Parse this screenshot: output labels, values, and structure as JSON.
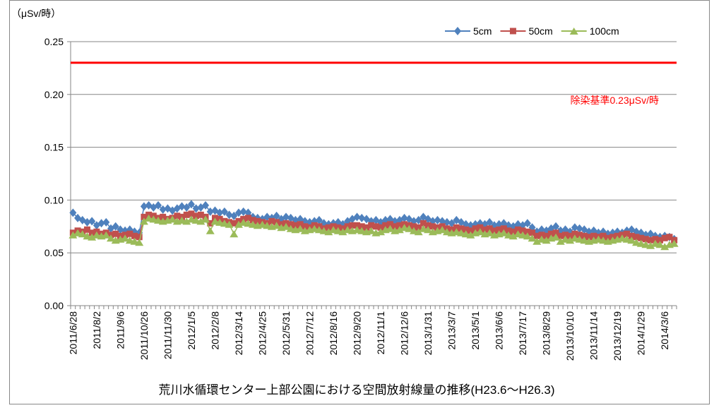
{
  "chart_data": {
    "type": "line",
    "title": "荒川水循環センター上部公園における空間放射線量の推移(H23.6〜H26.3)",
    "y_label": "（μSv/時）",
    "categories": [
      "2011/6/28",
      null,
      null,
      null,
      null,
      "2011/8/2",
      null,
      null,
      null,
      null,
      "2011/9/6",
      null,
      null,
      null,
      null,
      "2011/10/26",
      null,
      null,
      null,
      null,
      "2011/11/30",
      null,
      null,
      null,
      null,
      "2012/1/5",
      null,
      null,
      null,
      null,
      "2012/2/8",
      null,
      null,
      null,
      null,
      "2012/3/14",
      null,
      null,
      null,
      null,
      "2012/4/25",
      null,
      null,
      null,
      null,
      "2012/5/31",
      null,
      null,
      null,
      null,
      "2012/7/12",
      null,
      null,
      null,
      null,
      "2012/8/16",
      null,
      null,
      null,
      null,
      "2012/9/20",
      null,
      null,
      null,
      null,
      "2012/11/1",
      null,
      null,
      null,
      null,
      "2012/12/6",
      null,
      null,
      null,
      null,
      "2013/1/31",
      null,
      null,
      null,
      null,
      "2013/3/7",
      null,
      null,
      null,
      null,
      "2013/5/1",
      null,
      null,
      null,
      null,
      "2013/6/6",
      null,
      null,
      null,
      null,
      "2013/7/17",
      null,
      null,
      null,
      null,
      "2013/8/29",
      null,
      null,
      null,
      null,
      "2013/10/10",
      null,
      null,
      null,
      null,
      "2013/11/14",
      null,
      null,
      null,
      null,
      "2013/12/19",
      null,
      null,
      null,
      null,
      "2014/1/29",
      null,
      null,
      null,
      null,
      "2014/3/6",
      null,
      null
    ],
    "series": [
      {
        "name": "5cm",
        "color": "#4f81bd",
        "marker": "diamond",
        "values": [
          0.088,
          0.083,
          0.081,
          0.079,
          0.08,
          0.076,
          0.078,
          0.079,
          0.073,
          0.075,
          0.072,
          0.071,
          0.072,
          0.07,
          0.069,
          0.094,
          0.095,
          0.093,
          0.095,
          0.091,
          0.092,
          0.09,
          0.092,
          0.094,
          0.093,
          0.096,
          0.092,
          0.093,
          0.095,
          0.089,
          0.09,
          0.088,
          0.089,
          0.086,
          0.085,
          0.088,
          0.089,
          0.088,
          0.084,
          0.083,
          0.082,
          0.084,
          0.083,
          0.085,
          0.082,
          0.084,
          0.083,
          0.081,
          0.082,
          0.08,
          0.079,
          0.08,
          0.081,
          0.078,
          0.077,
          0.078,
          0.079,
          0.077,
          0.08,
          0.082,
          0.084,
          0.083,
          0.082,
          0.08,
          0.081,
          0.079,
          0.081,
          0.082,
          0.08,
          0.081,
          0.083,
          0.082,
          0.08,
          0.081,
          0.084,
          0.082,
          0.08,
          0.081,
          0.08,
          0.079,
          0.078,
          0.081,
          0.079,
          0.077,
          0.076,
          0.077,
          0.078,
          0.077,
          0.079,
          0.076,
          0.077,
          0.078,
          0.076,
          0.075,
          0.077,
          0.076,
          0.078,
          0.074,
          0.07,
          0.072,
          0.071,
          0.073,
          0.075,
          0.071,
          0.072,
          0.07,
          0.074,
          0.073,
          0.072,
          0.07,
          0.071,
          0.069,
          0.07,
          0.068,
          0.069,
          0.07,
          0.069,
          0.071,
          0.072,
          0.07,
          0.069,
          0.067,
          0.068,
          0.066,
          0.065,
          0.066,
          0.065,
          0.063
        ]
      },
      {
        "name": "50cm",
        "color": "#c0504d",
        "marker": "square",
        "values": [
          0.069,
          0.071,
          0.07,
          0.072,
          0.069,
          0.07,
          0.068,
          0.069,
          0.067,
          0.068,
          0.066,
          0.067,
          0.068,
          0.066,
          0.065,
          0.084,
          0.086,
          0.085,
          0.083,
          0.084,
          0.082,
          0.083,
          0.085,
          0.084,
          0.086,
          0.087,
          0.085,
          0.086,
          0.084,
          0.078,
          0.083,
          0.082,
          0.08,
          0.079,
          0.078,
          0.08,
          0.082,
          0.083,
          0.081,
          0.08,
          0.079,
          0.078,
          0.08,
          0.079,
          0.077,
          0.078,
          0.077,
          0.076,
          0.077,
          0.075,
          0.074,
          0.076,
          0.075,
          0.073,
          0.074,
          0.075,
          0.074,
          0.073,
          0.075,
          0.076,
          0.076,
          0.075,
          0.074,
          0.076,
          0.075,
          0.074,
          0.076,
          0.077,
          0.075,
          0.076,
          0.077,
          0.076,
          0.075,
          0.074,
          0.078,
          0.076,
          0.075,
          0.074,
          0.075,
          0.073,
          0.072,
          0.074,
          0.073,
          0.072,
          0.071,
          0.073,
          0.074,
          0.072,
          0.073,
          0.071,
          0.072,
          0.073,
          0.071,
          0.07,
          0.072,
          0.071,
          0.07,
          0.069,
          0.066,
          0.067,
          0.066,
          0.068,
          0.069,
          0.066,
          0.067,
          0.066,
          0.068,
          0.067,
          0.066,
          0.065,
          0.066,
          0.065,
          0.066,
          0.064,
          0.065,
          0.066,
          0.067,
          0.068,
          0.066,
          0.065,
          0.064,
          0.063,
          0.062,
          0.063,
          0.062,
          0.064,
          0.065,
          0.062
        ]
      },
      {
        "name": "100cm",
        "color": "#9bbb59",
        "marker": "triangle",
        "values": [
          0.067,
          0.069,
          0.068,
          0.066,
          0.065,
          0.067,
          0.066,
          0.067,
          0.064,
          0.062,
          0.063,
          0.064,
          0.062,
          0.061,
          0.06,
          0.08,
          0.083,
          0.082,
          0.081,
          0.08,
          0.081,
          0.082,
          0.08,
          0.081,
          0.08,
          0.082,
          0.081,
          0.08,
          0.082,
          0.071,
          0.08,
          0.079,
          0.078,
          0.077,
          0.068,
          0.077,
          0.079,
          0.078,
          0.077,
          0.076,
          0.077,
          0.076,
          0.075,
          0.076,
          0.074,
          0.075,
          0.073,
          0.072,
          0.073,
          0.071,
          0.072,
          0.073,
          0.072,
          0.071,
          0.07,
          0.072,
          0.071,
          0.07,
          0.072,
          0.071,
          0.072,
          0.071,
          0.07,
          0.071,
          0.069,
          0.07,
          0.072,
          0.073,
          0.071,
          0.072,
          0.074,
          0.073,
          0.071,
          0.07,
          0.073,
          0.072,
          0.07,
          0.071,
          0.072,
          0.07,
          0.069,
          0.07,
          0.069,
          0.068,
          0.067,
          0.069,
          0.07,
          0.068,
          0.069,
          0.067,
          0.068,
          0.069,
          0.067,
          0.066,
          0.068,
          0.067,
          0.066,
          0.064,
          0.061,
          0.063,
          0.062,
          0.064,
          0.065,
          0.061,
          0.063,
          0.062,
          0.064,
          0.063,
          0.062,
          0.061,
          0.062,
          0.063,
          0.062,
          0.061,
          0.062,
          0.063,
          0.064,
          0.063,
          0.062,
          0.06,
          0.059,
          0.058,
          0.057,
          0.059,
          0.058,
          0.056,
          0.058,
          0.059
        ]
      }
    ],
    "reference_line": {
      "value": 0.23,
      "label": "除染基準0.23μSv/時",
      "color": "#ff0000"
    },
    "ylim": [
      0,
      0.25
    ],
    "yticks": [
      {
        "value": 0,
        "label": "0.00"
      },
      0.05,
      {
        "value": 0.1,
        "label": "0.10"
      },
      0.15,
      {
        "value": 0.2,
        "label": "0.20"
      },
      0.25
    ],
    "grid": true,
    "legend": "top-right"
  }
}
